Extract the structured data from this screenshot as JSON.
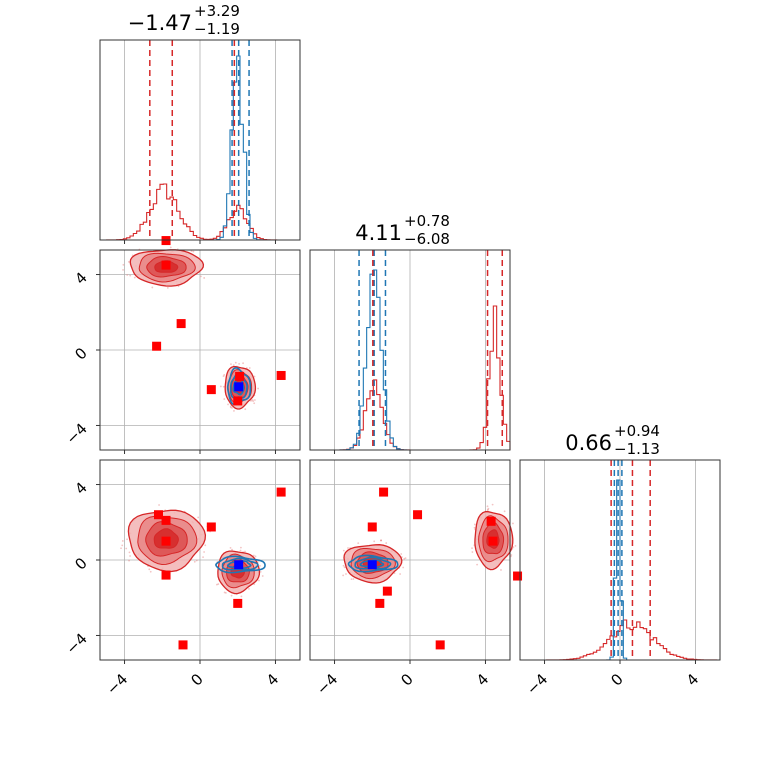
{
  "colors": {
    "red": "#d62728",
    "blue": "#1f77b4",
    "marker_red": "#ff0000",
    "marker_blue": "#0000ff",
    "grid": "#b0b0b0"
  },
  "chart_data": {
    "type": "corner",
    "parameters": 3,
    "axis_range": [
      -5.3,
      5.3
    ],
    "tick_values": [
      -4,
      0,
      4
    ],
    "tick_labels": [
      "−4",
      "0",
      "4"
    ],
    "grid": true,
    "titles": [
      {
        "median": "−1.47",
        "plus": "+3.29",
        "minus": "−1.19"
      },
      {
        "median": "4.11",
        "plus": "+0.78",
        "minus": "−6.08"
      },
      {
        "median": "0.66",
        "plus": "+0.94",
        "minus": "−1.13"
      }
    ],
    "histograms": [
      {
        "red_components": [
          {
            "mu": -1.9,
            "sigma": 0.75,
            "w": 0.62
          },
          {
            "mu": 2.0,
            "sigma": 0.5,
            "w": 0.38
          }
        ],
        "blue_components": [
          {
            "mu": 2.0,
            "sigma": 0.3,
            "w": 1.0
          }
        ],
        "red_quantiles": [
          -2.66,
          -1.47,
          1.82
        ],
        "blue_quantiles": [
          1.7,
          2.05,
          2.6
        ],
        "red_peak": 0.28,
        "blue_peak": 0.92
      },
      {
        "red_components": [
          {
            "mu": -1.9,
            "sigma": 0.45,
            "w": 0.35
          },
          {
            "mu": 4.5,
            "sigma": 0.3,
            "w": 0.65
          }
        ],
        "blue_components": [
          {
            "mu": -1.9,
            "sigma": 0.4,
            "w": 1.0
          }
        ],
        "red_quantiles": [
          -1.97,
          4.11,
          4.89
        ],
        "blue_quantiles": [
          -2.7,
          -1.9,
          -1.3
        ],
        "red_peak": 0.72,
        "blue_peak": 0.9
      },
      {
        "red_components": [
          {
            "mu": 0.6,
            "sigma": 1.15,
            "w": 1.0
          }
        ],
        "blue_components": [
          {
            "mu": -0.1,
            "sigma": 0.12,
            "w": 1.0
          }
        ],
        "red_quantiles": [
          -0.47,
          0.66,
          1.6
        ],
        "blue_quantiles": [
          -0.3,
          -0.1,
          0.1
        ],
        "red_peak": 0.2,
        "blue_peak": 0.9
      }
    ],
    "contours_2d": [
      {
        "row": 1,
        "col": 0,
        "red_blobs": [
          {
            "cx": -1.8,
            "cy": 4.4,
            "rx": 1.9,
            "ry": 0.95
          },
          {
            "cx": 2.1,
            "cy": -1.95,
            "rx": 0.8,
            "ry": 1.1
          }
        ],
        "blue_blobs": [
          {
            "cx": 2.05,
            "cy": -1.95,
            "rx": 0.6,
            "ry": 0.9
          }
        ]
      },
      {
        "row": 2,
        "col": 0,
        "red_blobs": [
          {
            "cx": -1.8,
            "cy": 1.1,
            "rx": 2.0,
            "ry": 1.6
          },
          {
            "cx": 2.0,
            "cy": -0.6,
            "rx": 1.1,
            "ry": 1.1
          }
        ],
        "blue_blobs": [
          {
            "cx": 2.1,
            "cy": -0.25,
            "rx": 1.3,
            "ry": 0.4
          }
        ]
      },
      {
        "row": 2,
        "col": 1,
        "red_blobs": [
          {
            "cx": -2.0,
            "cy": -0.15,
            "rx": 1.5,
            "ry": 1.0
          },
          {
            "cx": 4.4,
            "cy": 1.1,
            "rx": 1.0,
            "ry": 1.5
          }
        ],
        "blue_blobs": [
          {
            "cx": -2.0,
            "cy": -0.2,
            "rx": 1.3,
            "ry": 0.4
          }
        ]
      }
    ],
    "markers": [
      {
        "row": 1,
        "col": 0,
        "red": [
          [
            -1.8,
            5.8
          ],
          [
            -1.8,
            4.5
          ],
          [
            -1.0,
            1.4
          ],
          [
            -2.3,
            0.2
          ],
          [
            0.6,
            -2.1
          ],
          [
            2.1,
            -1.4
          ],
          [
            4.3,
            -1.35
          ],
          [
            2.0,
            -2.7
          ]
        ],
        "blue": [
          [
            2.05,
            -1.95
          ]
        ]
      },
      {
        "row": 2,
        "col": 0,
        "red": [
          [
            -2.2,
            2.4
          ],
          [
            -1.8,
            2.1
          ],
          [
            0.6,
            1.75
          ],
          [
            4.3,
            3.6
          ],
          [
            -1.8,
            1.0
          ],
          [
            -1.8,
            -0.8
          ],
          [
            2.0,
            -2.3
          ],
          [
            -0.9,
            -4.5
          ]
        ],
        "blue": [
          [
            2.05,
            -0.25
          ]
        ]
      },
      {
        "row": 2,
        "col": 1,
        "red": [
          [
            -1.4,
            3.6
          ],
          [
            -2.0,
            1.75
          ],
          [
            0.4,
            2.4
          ],
          [
            4.3,
            2.05
          ],
          [
            4.4,
            1.0
          ],
          [
            5.7,
            -0.85
          ],
          [
            -1.2,
            -1.65
          ],
          [
            -1.6,
            -2.3
          ],
          [
            1.6,
            -4.5
          ]
        ],
        "blue": [
          [
            -2.0,
            -0.25
          ]
        ]
      }
    ]
  }
}
